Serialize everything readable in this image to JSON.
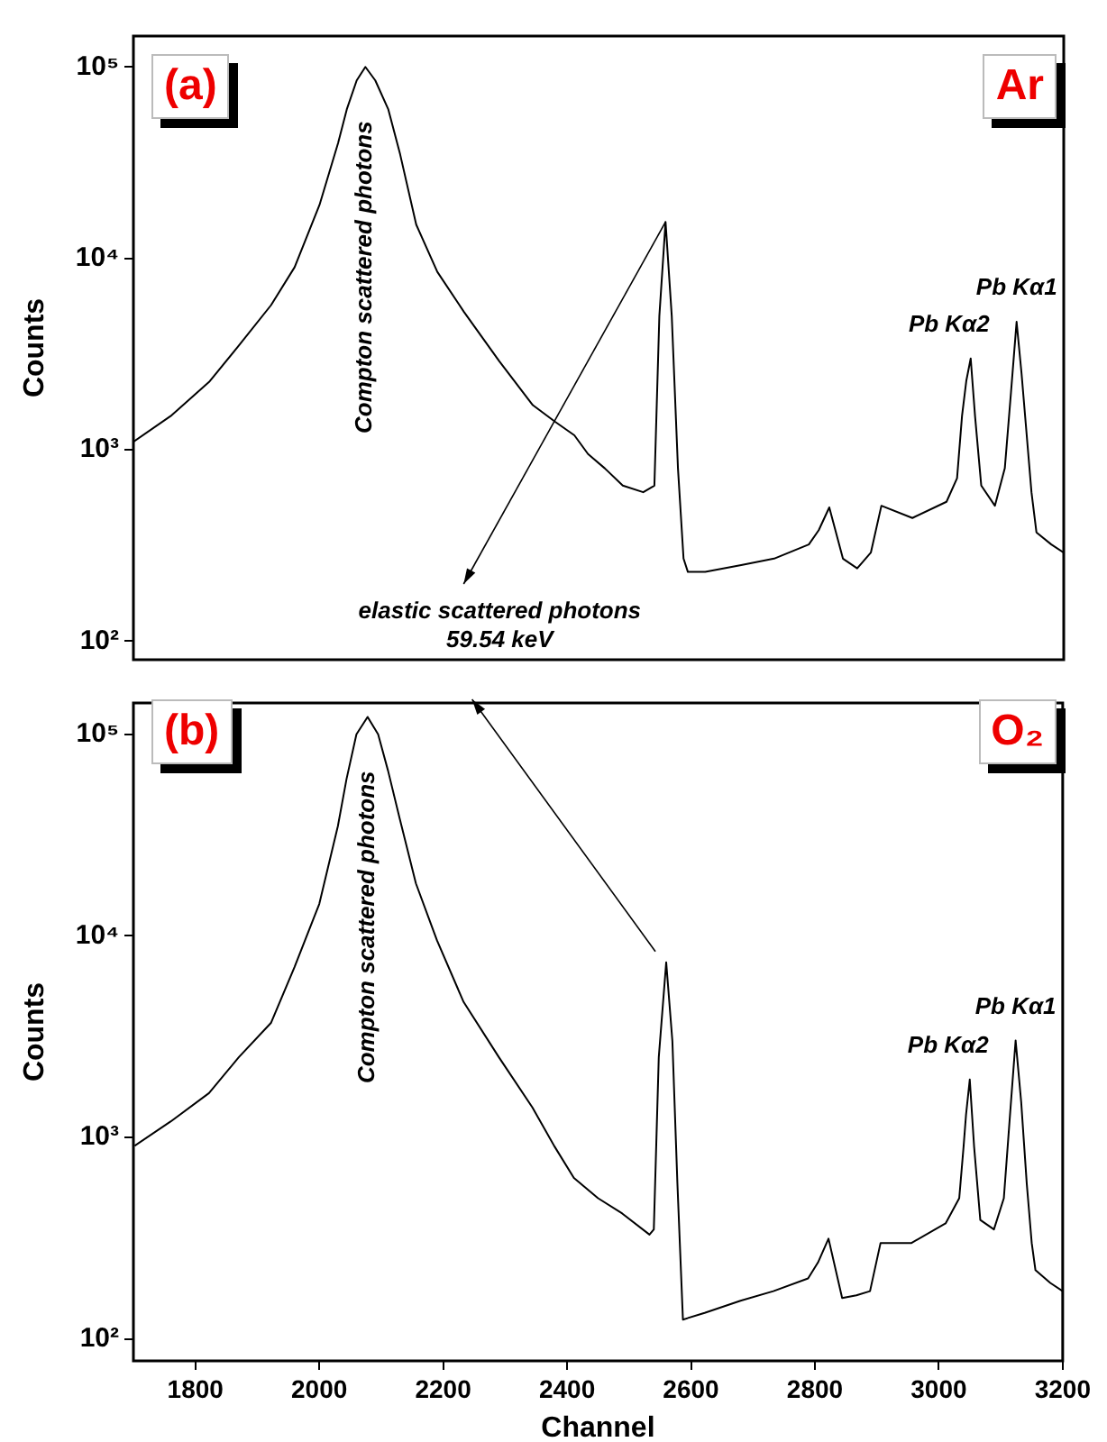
{
  "chart_data": [
    {
      "type": "line",
      "ylabel": "Counts",
      "log": true,
      "marker": "none",
      "tick_labels": "y",
      "color": "#000000",
      "xlim": [
        1700,
        3200
      ],
      "xticks": [
        1800,
        2000,
        2200,
        2400,
        2600,
        2800,
        3000,
        3200
      ],
      "ylim": [
        80,
        145000
      ],
      "yticks": [
        {
          "value": 100,
          "label": "10²"
        },
        {
          "value": 1000,
          "label": "10³"
        },
        {
          "value": 10000,
          "label": "10⁴"
        },
        {
          "value": 100000,
          "label": "10⁵"
        }
      ],
      "x": [
        1700,
        1760,
        1822,
        1870,
        1922,
        1960,
        2000,
        2030,
        2044,
        2060,
        2074,
        2090,
        2111,
        2130,
        2156,
        2190,
        2233,
        2290,
        2344,
        2380,
        2411,
        2433,
        2460,
        2489,
        2522,
        2540,
        2548,
        2558,
        2568,
        2578,
        2587,
        2594,
        2622,
        2680,
        2733,
        2789,
        2805,
        2822,
        2844,
        2867,
        2889,
        2906,
        2956,
        3011,
        3028,
        3036,
        3043,
        3050,
        3057,
        3067,
        3089,
        3105,
        3115,
        3124,
        3132,
        3139,
        3148,
        3156,
        3180,
        3200
      ],
      "values": [
        1100,
        1500,
        2260,
        3500,
        5700,
        9000,
        19000,
        40000,
        60000,
        85000,
        100000,
        85000,
        60000,
        35000,
        15000,
        8500,
        5250,
        2900,
        1710,
        1400,
        1190,
        950,
        800,
        650,
        600,
        650,
        5000,
        15500,
        5000,
        800,
        270,
        230,
        230,
        250,
        270,
        320,
        380,
        500,
        270,
        240,
        290,
        510,
        440,
        535,
        710,
        1500,
        2300,
        3000,
        1500,
        650,
        510,
        800,
        2000,
        4660,
        2500,
        1340,
        600,
        370,
        320,
        290
      ],
      "annotations": [
        "(a)",
        "Ar",
        {
          "text": "Compton scattered photons",
          "x": 2074,
          "y": 100000
        },
        {
          "text": "Pb Kα2",
          "x": 3050,
          "y": 3000
        },
        {
          "text": "Pb Kα1",
          "x": 3124,
          "y": 4660
        },
        {
          "text": "elastic scattered photons\n59.54 keV",
          "x": 2558,
          "y": 15500
        }
      ]
    },
    {
      "type": "line",
      "xlabel": "Channel",
      "ylabel": "Counts",
      "log": true,
      "marker": "none",
      "color": "#000000",
      "xlim": [
        1700,
        3200
      ],
      "xticks": [
        1800,
        2000,
        2200,
        2400,
        2600,
        2800,
        3000,
        3200
      ],
      "ylim": [
        78,
        143000
      ],
      "yticks": [
        {
          "value": 100,
          "label": "10²"
        },
        {
          "value": 1000,
          "label": "10³"
        },
        {
          "value": 10000,
          "label": "10⁴"
        },
        {
          "value": 100000,
          "label": "10⁵"
        }
      ],
      "x": [
        1702,
        1760,
        1822,
        1870,
        1922,
        1960,
        2000,
        2030,
        2044,
        2060,
        2078,
        2095,
        2111,
        2130,
        2156,
        2190,
        2233,
        2290,
        2344,
        2380,
        2411,
        2450,
        2489,
        2533,
        2540,
        2548,
        2560,
        2570,
        2578,
        2587,
        2622,
        2680,
        2733,
        2789,
        2805,
        2822,
        2844,
        2867,
        2889,
        2906,
        2956,
        3011,
        3033,
        3040,
        3044,
        3050,
        3057,
        3067,
        3089,
        3105,
        3115,
        3124,
        3133,
        3142,
        3150,
        3156,
        3180,
        3200
      ],
      "values": [
        910,
        1200,
        1660,
        2500,
        3700,
        7000,
        14400,
        35000,
        60000,
        100000,
        122000,
        100000,
        66000,
        38000,
        18200,
        9500,
        4700,
        2500,
        1410,
        900,
        630,
        500,
        420,
        330,
        350,
        2500,
        7400,
        3000,
        600,
        125,
        135,
        155,
        173,
        200,
        240,
        315,
        160,
        165,
        173,
        300,
        300,
        375,
        500,
        900,
        1300,
        1940,
        900,
        390,
        350,
        500,
        1300,
        3030,
        1500,
        590,
        300,
        220,
        190,
        173
      ],
      "annotations": [
        "(b)",
        "O₂",
        {
          "text": "Compton scattered photons",
          "x": 2078,
          "y": 122000
        },
        {
          "text": "Pb Kα2",
          "x": 3050,
          "y": 1940
        },
        {
          "text": "Pb Kα1",
          "x": 3124,
          "y": 3030
        }
      ]
    }
  ]
}
